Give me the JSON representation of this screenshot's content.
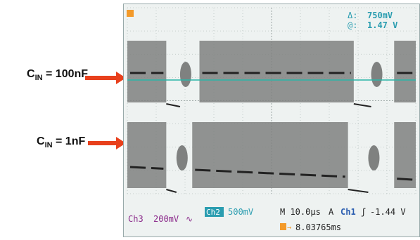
{
  "labels": {
    "cin_100nf": {
      "prefix": "C",
      "sub": "IN",
      "suffix": " = 100nF"
    },
    "cin_1nf": {
      "prefix": "C",
      "sub": "IN",
      "suffix": " = 1nF"
    }
  },
  "scope": {
    "delta_label": "Δ:",
    "delta_value": "750mV",
    "at_label": "@:",
    "at_value": "1.47 V",
    "ch3_label": "Ch3",
    "ch3_scale": "200mV",
    "ch3_coupling": "∿",
    "ch2_label": "Ch2",
    "ch2_scale": "500mV",
    "timebase": "M 10.0µs",
    "acq_mode": "A",
    "trig_source": "Ch1",
    "trig_slope": "ʃ",
    "trig_level": "-1.44 V",
    "trig_pos": "8.03765ms"
  },
  "colors": {
    "arrow": "#e8401c",
    "trace_gray": "#7f8180",
    "trace_dark": "#222222",
    "cursor_line": "#2ab5a8",
    "header_text": "#2a9db0",
    "ch3_text": "#8b2a8b",
    "ch2_badge": "#2a9db0"
  },
  "chart_data": {
    "type": "line",
    "x_divisions": 10,
    "x_per_division": "10.0µs",
    "series": [
      {
        "name": "C_IN = 100nF",
        "style": "burst switching envelope with dashed average",
        "blocks": [
          [
            0.0,
            1.35
          ],
          [
            2.5,
            7.85
          ],
          [
            9.25,
            10.0
          ]
        ]
      },
      {
        "name": "C_IN = 1nF",
        "style": "burst switching envelope with decaying dashed average",
        "blocks": [
          [
            0.0,
            1.35
          ],
          [
            2.25,
            7.65
          ],
          [
            9.25,
            10.0
          ]
        ]
      }
    ]
  }
}
